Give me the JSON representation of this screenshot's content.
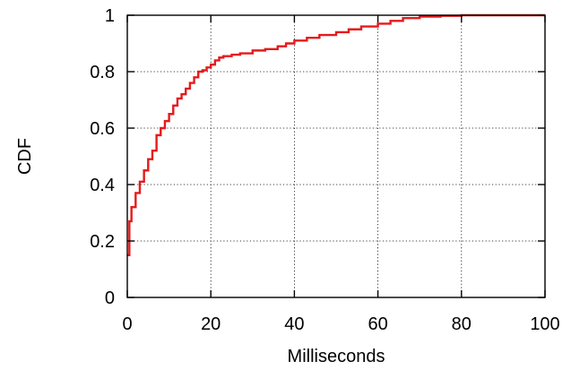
{
  "chart_data": {
    "type": "line",
    "step": true,
    "xlabel": "Milliseconds",
    "ylabel": "CDF",
    "xlim": [
      0,
      100
    ],
    "ylim": [
      0,
      1
    ],
    "x_ticks": [
      0,
      20,
      40,
      60,
      80,
      100
    ],
    "y_ticks": [
      0,
      0.2,
      0.4,
      0.6,
      0.8,
      1
    ],
    "x_tick_labels": [
      "0",
      "20",
      "40",
      "60",
      "80",
      "100"
    ],
    "y_tick_labels": [
      "0",
      "0.2",
      "0.4",
      "0.6",
      "0.8",
      "1"
    ],
    "grid": true,
    "series": [
      {
        "color": "#e41a1c",
        "x": [
          0,
          0.5,
          1,
          2,
          3,
          4,
          5,
          6,
          7,
          8,
          9,
          10,
          11,
          12,
          13,
          14,
          15,
          16,
          17,
          18,
          19,
          20,
          21,
          22,
          23,
          25,
          27,
          30,
          33,
          36,
          38,
          40,
          43,
          46,
          50,
          53,
          56,
          60,
          63,
          66,
          70,
          75,
          80,
          100
        ],
        "y": [
          0.15,
          0.27,
          0.32,
          0.37,
          0.41,
          0.45,
          0.49,
          0.52,
          0.575,
          0.6,
          0.625,
          0.65,
          0.68,
          0.705,
          0.72,
          0.74,
          0.76,
          0.78,
          0.8,
          0.805,
          0.815,
          0.825,
          0.84,
          0.85,
          0.855,
          0.86,
          0.865,
          0.875,
          0.88,
          0.89,
          0.9,
          0.91,
          0.92,
          0.93,
          0.94,
          0.95,
          0.96,
          0.97,
          0.98,
          0.99,
          0.995,
          0.998,
          1.0,
          1.0
        ]
      }
    ]
  }
}
